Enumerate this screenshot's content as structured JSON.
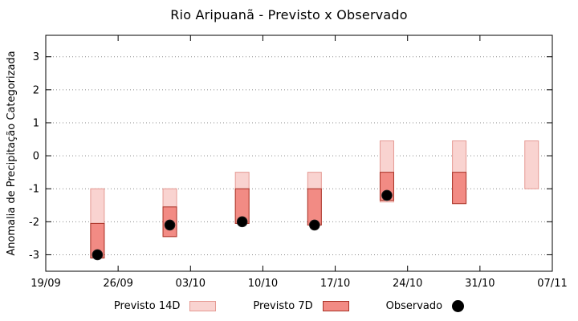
{
  "chart_data": {
    "type": "bar",
    "title": "Rio Aripuanã - Previsto x Observado",
    "ylabel": "Anomalia de Precipitação Categorizada",
    "xlabel": "",
    "grid": "horizontal-dotted",
    "legend_position": "bottom-center",
    "xlim_days": [
      0,
      49
    ],
    "ylim": [
      -3.5,
      3.65
    ],
    "x_ticks": [
      {
        "label": "19/09",
        "day": 0
      },
      {
        "label": "26/09",
        "day": 7
      },
      {
        "label": "03/10",
        "day": 14
      },
      {
        "label": "10/10",
        "day": 21
      },
      {
        "label": "17/10",
        "day": 28
      },
      {
        "label": "24/10",
        "day": 35
      },
      {
        "label": "31/10",
        "day": 42
      },
      {
        "label": "07/11",
        "day": 49
      }
    ],
    "y_ticks": [
      -3,
      -2,
      -1,
      0,
      1,
      2,
      3
    ],
    "series": [
      {
        "name": "Previsto 14D",
        "type": "range",
        "fill": "#f9d3d0",
        "stroke": "#e59a93",
        "points": [
          {
            "day": 5,
            "high": -1.0,
            "low": -3.1
          },
          {
            "day": 12,
            "high": -1.0,
            "low": -2.45
          },
          {
            "day": 19,
            "high": -0.5,
            "low": -2.05
          },
          {
            "day": 26,
            "high": -0.5,
            "low": -2.1
          },
          {
            "day": 33,
            "high": 0.45,
            "low": -1.4
          },
          {
            "day": 40,
            "high": 0.45,
            "low": -1.45
          },
          {
            "day": 47,
            "high": 0.45,
            "low": -1.0
          }
        ]
      },
      {
        "name": "Previsto 7D",
        "type": "range",
        "fill": "#f28b84",
        "stroke": "#a93226",
        "points": [
          {
            "day": 5,
            "high": -2.05,
            "low": -3.1
          },
          {
            "day": 12,
            "high": -1.55,
            "low": -2.45
          },
          {
            "day": 19,
            "high": -1.0,
            "low": -2.05
          },
          {
            "day": 26,
            "high": -1.0,
            "low": -2.1
          },
          {
            "day": 33,
            "high": -0.5,
            "low": -1.35
          },
          {
            "day": 40,
            "high": -0.5,
            "low": -1.45
          }
        ]
      },
      {
        "name": "Observado",
        "type": "point",
        "fill": "#000000",
        "points": [
          {
            "day": 5,
            "value": -3.0
          },
          {
            "day": 12,
            "value": -2.1
          },
          {
            "day": 19,
            "value": -2.0
          },
          {
            "day": 26,
            "value": -2.1
          },
          {
            "day": 33,
            "value": -1.2
          }
        ]
      }
    ],
    "legend": [
      {
        "label": "Previsto 14D",
        "swatch": "range14"
      },
      {
        "label": "Previsto 7D",
        "swatch": "range7"
      },
      {
        "label": "Observado",
        "swatch": "dot"
      }
    ]
  }
}
